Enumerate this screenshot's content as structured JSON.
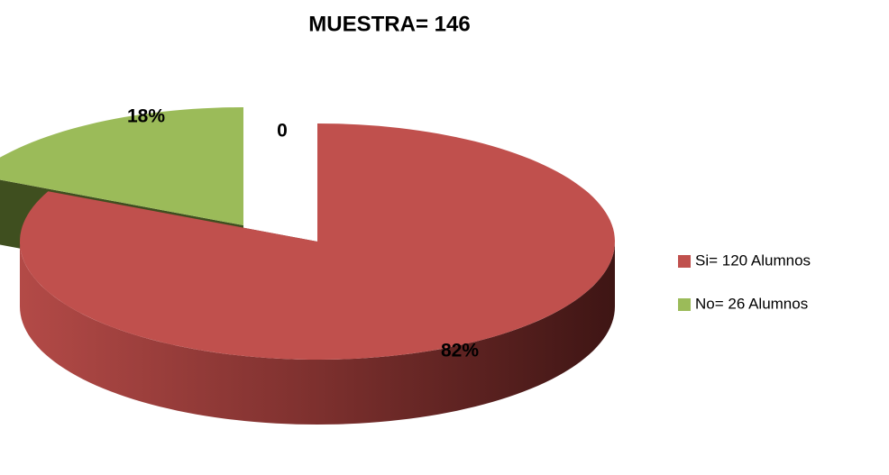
{
  "chart_data": {
    "type": "pie3d",
    "title": "MUESTRA= 146",
    "categories": [
      "Si= 120 Alumnos",
      "No= 26 Alumnos"
    ],
    "values": [
      82,
      18
    ],
    "value_labels": [
      "82%",
      "18%"
    ],
    "colors": [
      "#c0504d",
      "#9bbb59"
    ],
    "annotation": "0",
    "legend": "right"
  }
}
